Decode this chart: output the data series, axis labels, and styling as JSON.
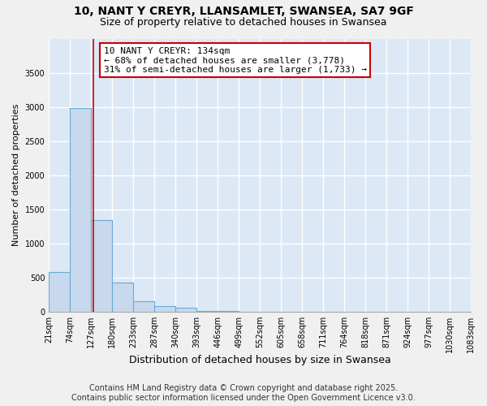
{
  "title1": "10, NANT Y CREYR, LLANSAMLET, SWANSEA, SA7 9GF",
  "title2": "Size of property relative to detached houses in Swansea",
  "xlabel": "Distribution of detached houses by size in Swansea",
  "ylabel": "Number of detached properties",
  "bin_edges": [
    21,
    74,
    127,
    180,
    233,
    287,
    340,
    393,
    446,
    499,
    552,
    605,
    658,
    711,
    764,
    818,
    871,
    924,
    977,
    1030,
    1083
  ],
  "bin_counts": [
    580,
    2980,
    1340,
    430,
    155,
    90,
    55,
    15,
    8,
    5,
    3,
    2,
    1,
    1,
    1,
    1,
    1,
    1,
    1,
    1
  ],
  "bar_color": "#c8d9ed",
  "bar_edge_color": "#6aaad4",
  "property_size": 134,
  "red_line_color": "#cc0000",
  "annotation_text": "10 NANT Y CREYR: 134sqm\n← 68% of detached houses are smaller (3,778)\n31% of semi-detached houses are larger (1,733) →",
  "annotation_box_color": "#ffffff",
  "annotation_box_edge_color": "#cc0000",
  "ylim": [
    0,
    4000
  ],
  "yticks": [
    0,
    500,
    1000,
    1500,
    2000,
    2500,
    3000,
    3500
  ],
  "background_color": "#dce8f5",
  "grid_color": "#ffffff",
  "footer_text": "Contains HM Land Registry data © Crown copyright and database right 2025.\nContains public sector information licensed under the Open Government Licence v3.0.",
  "title1_fontsize": 10,
  "title2_fontsize": 9,
  "ylabel_fontsize": 8,
  "xlabel_fontsize": 9,
  "annotation_fontsize": 8,
  "footer_fontsize": 7,
  "tick_fontsize": 7
}
